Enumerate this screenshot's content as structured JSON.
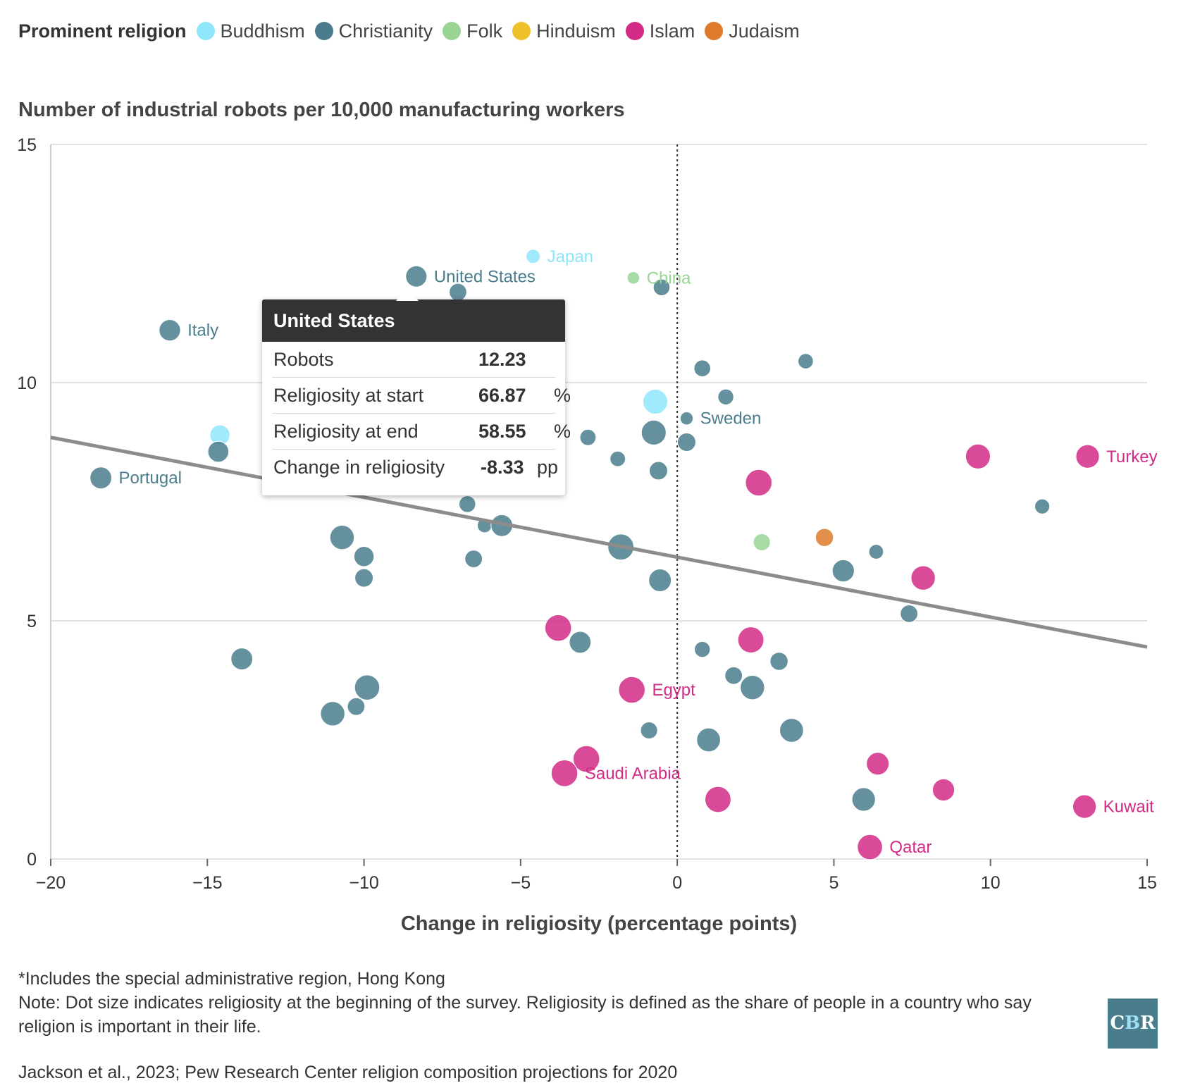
{
  "legend": {
    "title": "Prominent religion",
    "items": [
      {
        "label": "Buddhism",
        "color": "#8ee6fb"
      },
      {
        "label": "Christianity",
        "color": "#4a7d8c"
      },
      {
        "label": "Folk",
        "color": "#98d595"
      },
      {
        "label": "Hinduism",
        "color": "#eec12c"
      },
      {
        "label": "Islam",
        "color": "#d22c86"
      },
      {
        "label": "Judaism",
        "color": "#dd7b2a"
      }
    ]
  },
  "chart_data": {
    "type": "scatter",
    "title": "Number of industrial robots per 10,000 manufacturing workers",
    "xlabel": "Change in religiosity (percentage points)",
    "ylabel": "",
    "xlim": [
      -20,
      15
    ],
    "ylim": [
      0,
      15
    ],
    "x_ticks": [
      "-20",
      "-15",
      "-10",
      "-5",
      "0",
      "5",
      "10",
      "15"
    ],
    "y_ticks": [
      "0",
      "5",
      "10",
      "15"
    ],
    "grid": "horizontal",
    "reference_line_x": 0,
    "trend_line": {
      "x": [
        -20,
        15
      ],
      "y": [
        8.85,
        4.45
      ]
    },
    "point_size": "religiosity at the beginning of the survey",
    "points": [
      {
        "x": -8.33,
        "y": 12.23,
        "size": 67,
        "religion": "Christianity",
        "label": "United States"
      },
      {
        "x": -4.6,
        "y": 12.65,
        "size": 25,
        "religion": "Buddhism",
        "label": "Japan"
      },
      {
        "x": -1.4,
        "y": 12.2,
        "size": 15,
        "religion": "Folk",
        "label": "China"
      },
      {
        "x": -7.0,
        "y": 11.9,
        "size": 45,
        "religion": "Christianity"
      },
      {
        "x": -0.5,
        "y": 12.0,
        "size": 40,
        "religion": "Christianity"
      },
      {
        "x": -16.2,
        "y": 11.1,
        "size": 68,
        "religion": "Christianity",
        "label": "Italy"
      },
      {
        "x": 0.8,
        "y": 10.3,
        "size": 40,
        "religion": "Christianity"
      },
      {
        "x": 4.1,
        "y": 10.45,
        "size": 32,
        "religion": "Christianity"
      },
      {
        "x": 1.55,
        "y": 9.7,
        "size": 35,
        "religion": "Christianity"
      },
      {
        "x": -0.7,
        "y": 9.6,
        "size": 88,
        "religion": "Buddhism"
      },
      {
        "x": 0.3,
        "y": 9.25,
        "size": 18,
        "religion": "Christianity",
        "label": "Sweden"
      },
      {
        "x": -14.6,
        "y": 8.9,
        "size": 60,
        "religion": "Buddhism"
      },
      {
        "x": -14.65,
        "y": 8.55,
        "size": 65,
        "religion": "Christianity"
      },
      {
        "x": -0.75,
        "y": 8.95,
        "size": 88,
        "religion": "Christianity"
      },
      {
        "x": -2.85,
        "y": 8.85,
        "size": 37,
        "religion": "Christianity"
      },
      {
        "x": 0.3,
        "y": 8.75,
        "size": 50,
        "religion": "Christianity"
      },
      {
        "x": -1.9,
        "y": 8.4,
        "size": 33,
        "religion": "Christianity"
      },
      {
        "x": -0.6,
        "y": 8.15,
        "size": 50,
        "religion": "Christianity"
      },
      {
        "x": -18.4,
        "y": 8.0,
        "size": 70,
        "religion": "Christianity",
        "label": "Portugal"
      },
      {
        "x": 9.6,
        "y": 8.45,
        "size": 88,
        "religion": "Islam"
      },
      {
        "x": 13.1,
        "y": 8.45,
        "size": 80,
        "religion": "Islam",
        "label": "Turkey"
      },
      {
        "x": 2.6,
        "y": 7.9,
        "size": 98,
        "religion": "Islam"
      },
      {
        "x": -6.7,
        "y": 7.45,
        "size": 40,
        "religion": "Christianity"
      },
      {
        "x": 11.65,
        "y": 7.4,
        "size": 30,
        "religion": "Christianity"
      },
      {
        "x": -6.15,
        "y": 7.0,
        "size": 27,
        "religion": "Christianity"
      },
      {
        "x": -5.6,
        "y": 7.0,
        "size": 70,
        "religion": "Christianity"
      },
      {
        "x": -10.7,
        "y": 6.75,
        "size": 85,
        "religion": "Christianity"
      },
      {
        "x": 2.7,
        "y": 6.65,
        "size": 42,
        "religion": "Folk"
      },
      {
        "x": 4.7,
        "y": 6.75,
        "size": 48,
        "religion": "Judaism"
      },
      {
        "x": -1.8,
        "y": 6.55,
        "size": 95,
        "religion": "Christianity"
      },
      {
        "x": 6.35,
        "y": 6.45,
        "size": 28,
        "religion": "Christianity"
      },
      {
        "x": -10.0,
        "y": 6.35,
        "size": 60,
        "religion": "Christianity"
      },
      {
        "x": -6.5,
        "y": 6.3,
        "size": 45,
        "religion": "Christianity"
      },
      {
        "x": 5.3,
        "y": 6.05,
        "size": 72,
        "religion": "Christianity"
      },
      {
        "x": -10.0,
        "y": 5.9,
        "size": 50,
        "religion": "Christianity"
      },
      {
        "x": 7.85,
        "y": 5.9,
        "size": 85,
        "religion": "Islam"
      },
      {
        "x": -0.55,
        "y": 5.85,
        "size": 75,
        "religion": "Christianity"
      },
      {
        "x": 7.4,
        "y": 5.15,
        "size": 45,
        "religion": "Christianity"
      },
      {
        "x": -3.8,
        "y": 4.85,
        "size": 98,
        "religion": "Islam"
      },
      {
        "x": -3.1,
        "y": 4.55,
        "size": 70,
        "religion": "Christianity"
      },
      {
        "x": 2.35,
        "y": 4.6,
        "size": 95,
        "religion": "Islam"
      },
      {
        "x": 0.8,
        "y": 4.4,
        "size": 35,
        "religion": "Christianity"
      },
      {
        "x": -13.9,
        "y": 4.2,
        "size": 70,
        "religion": "Christianity"
      },
      {
        "x": 3.25,
        "y": 4.15,
        "size": 48,
        "religion": "Christianity"
      },
      {
        "x": 1.8,
        "y": 3.85,
        "size": 45,
        "religion": "Christianity"
      },
      {
        "x": -9.9,
        "y": 3.6,
        "size": 90,
        "religion": "Christianity"
      },
      {
        "x": 2.4,
        "y": 3.6,
        "size": 85,
        "religion": "Christianity"
      },
      {
        "x": -1.45,
        "y": 3.55,
        "size": 98,
        "religion": "Islam",
        "label": "Egypt"
      },
      {
        "x": -10.25,
        "y": 3.2,
        "size": 45,
        "religion": "Christianity"
      },
      {
        "x": -11.0,
        "y": 3.05,
        "size": 85,
        "religion": "Christianity"
      },
      {
        "x": 3.65,
        "y": 2.7,
        "size": 82,
        "religion": "Christianity"
      },
      {
        "x": -0.9,
        "y": 2.7,
        "size": 42,
        "religion": "Christianity"
      },
      {
        "x": 1.0,
        "y": 2.5,
        "size": 82,
        "religion": "Christianity"
      },
      {
        "x": -2.9,
        "y": 2.1,
        "size": 98,
        "religion": "Islam"
      },
      {
        "x": 6.4,
        "y": 2.0,
        "size": 75,
        "religion": "Islam"
      },
      {
        "x": -3.6,
        "y": 1.8,
        "size": 98,
        "religion": "Islam",
        "label": "Saudi Arabia"
      },
      {
        "x": 8.5,
        "y": 1.45,
        "size": 72,
        "religion": "Islam"
      },
      {
        "x": 1.3,
        "y": 1.25,
        "size": 95,
        "religion": "Islam"
      },
      {
        "x": 5.95,
        "y": 1.25,
        "size": 80,
        "religion": "Christianity"
      },
      {
        "x": 13.0,
        "y": 1.1,
        "size": 80,
        "religion": "Islam",
        "label": "Kuwait"
      },
      {
        "x": 6.15,
        "y": 0.25,
        "size": 90,
        "religion": "Islam",
        "label": "Qatar"
      }
    ]
  },
  "tooltip": {
    "title": "United States",
    "rows": [
      {
        "label": "Robots",
        "value": "12.23",
        "unit": ""
      },
      {
        "label": "Religiosity at start",
        "value": "66.87",
        "unit": "%"
      },
      {
        "label": "Religiosity at end",
        "value": "58.55",
        "unit": "%"
      },
      {
        "label": "Change in religiosity",
        "value": "-8.33",
        "unit": "pp"
      }
    ]
  },
  "footnote": {
    "line1": "*Includes the special administrative region, Hong Kong",
    "line2": "Note: Dot size indicates religiosity at the beginning of the survey. Religiosity is defined as the share of people in a country who say religion is important in their life."
  },
  "source": "Jackson et al., 2023; Pew Research Center religion composition projections for 2020",
  "logo": {
    "part1": "C",
    "part2": "B",
    "part3": "R"
  }
}
